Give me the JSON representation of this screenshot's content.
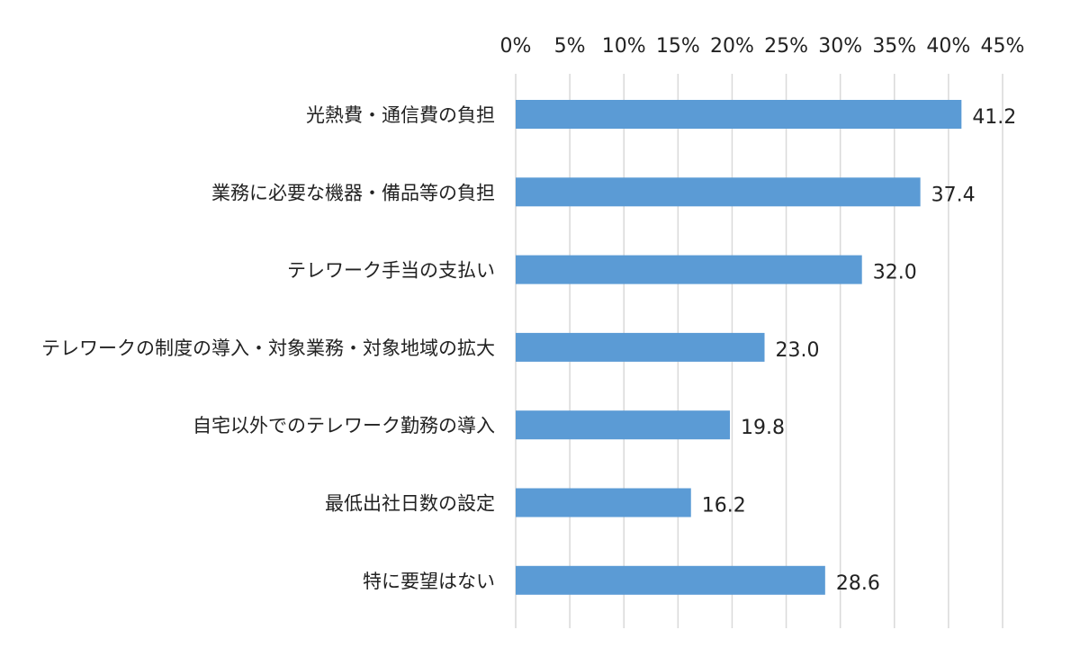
{
  "chart_data": {
    "type": "bar",
    "orientation": "horizontal",
    "categories": [
      "光熱費・通信費の負担",
      "業務に必要な機器・備品等の負担",
      "テレワーク手当の支払い",
      "テレワークの制度の導入・対象業務・対象地域の拡大",
      "自宅以外でのテレワーク勤務の導入",
      "最低出社日数の設定",
      "特に要望はない"
    ],
    "values": [
      41.2,
      37.4,
      32.0,
      23.0,
      19.8,
      16.2,
      28.6
    ],
    "value_labels": [
      "41.2",
      "37.4",
      "32.0",
      "23.0",
      "19.8",
      "16.2",
      "28.6"
    ],
    "x_ticks": [
      "0%",
      "5%",
      "10%",
      "15%",
      "20%",
      "25%",
      "30%",
      "35%",
      "40%",
      "45%"
    ],
    "xlim": [
      0,
      45
    ],
    "x_axis_position": "top",
    "grid": true,
    "legend": "none",
    "title": "",
    "xlabel": "",
    "ylabel": "",
    "bar_color": "#5b9bd5",
    "gridline_color": "#d9d9d9",
    "text_color": "#222222"
  }
}
